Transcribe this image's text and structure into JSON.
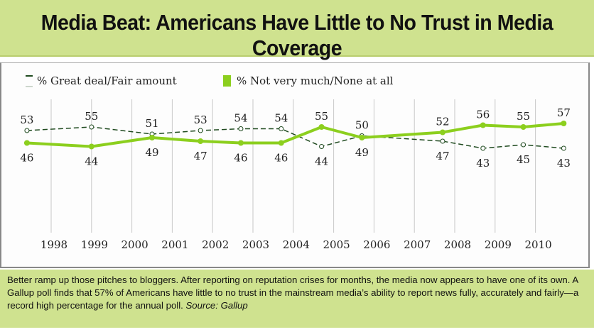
{
  "title": "Media Beat: Americans Have Little to No Trust in Media Coverage",
  "caption": {
    "text": "Better ramp up those pitches to bloggers. After reporting on reputation crises for months, the media now appears to have one of its own. A Gallup poll finds that 57% of Americans have little to no trust in the mainstream media’s ability to report news fully, accurately and fairly—a record high percentage for the annual poll.",
    "source": "Source: Gallup"
  },
  "chart_data": {
    "type": "line",
    "title": "",
    "xlabel": "",
    "ylabel": "",
    "x_tick_labels": [
      "1998",
      "1999",
      "2000",
      "2001",
      "2002",
      "2003",
      "2004",
      "2005",
      "2006",
      "2007",
      "2008",
      "2009",
      "2010"
    ],
    "x": [
      1997.4,
      1999.0,
      2000.5,
      2001.7,
      2002.7,
      2003.7,
      2004.7,
      2005.7,
      2007.7,
      2008.7,
      2009.7,
      2010.7
    ],
    "grid": "vertical",
    "legend": "top-left",
    "series": [
      {
        "name": "% Great deal/Fair amount",
        "color": "#1f4a1f",
        "style": "dashed",
        "values": [
          53,
          55,
          51,
          53,
          54,
          54,
          44,
          50,
          47,
          43,
          45,
          43
        ]
      },
      {
        "name": "% Not very much/None at all",
        "color": "#8ccf1e",
        "style": "solid",
        "values": [
          46,
          44,
          49,
          47,
          46,
          46,
          55,
          49,
          52,
          56,
          55,
          57
        ]
      }
    ]
  },
  "colors": {
    "band": "#cfe28f",
    "accent": "#8ccf1e"
  }
}
